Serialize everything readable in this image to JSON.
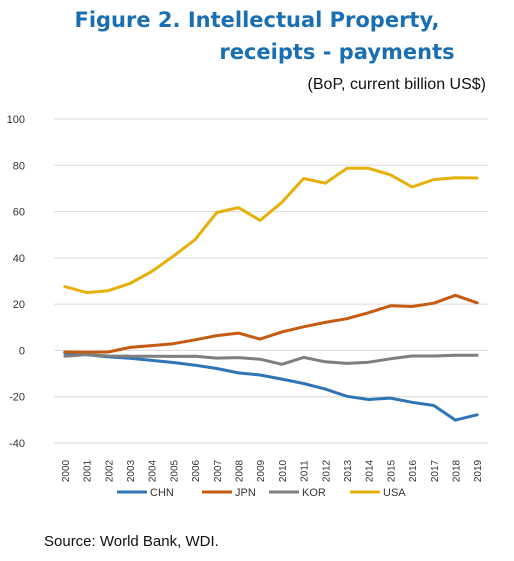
{
  "figure": {
    "title_line1": "Figure 2. Intellectual Property,",
    "title_line2": "receipts - payments",
    "units": "(BoP, current billion US$)",
    "source": "Source: World Bank, WDI."
  },
  "colors": {
    "CHN": "#2e75b6",
    "JPN": "#c55a11",
    "KOR": "#7f7f7f",
    "USA": "#e6b00a",
    "gridline": "#d9d9d9",
    "title": "#1a6fb3"
  },
  "chart_data": {
    "type": "line",
    "title": "Figure 2. Intellectual Property, receipts - payments",
    "ylabel": "",
    "xlabel": "",
    "ylim": [
      -40,
      100
    ],
    "yticks": [
      100,
      80,
      60,
      40,
      20,
      0,
      -20,
      -40
    ],
    "ytick_labels": [
      "100",
      "80",
      "60",
      "40",
      "20",
      "0",
      "-20",
      "-40"
    ],
    "grid": true,
    "legend": "bottom",
    "x": [
      "2000",
      "2001",
      "2002",
      "2003",
      "2004",
      "2005",
      "2006",
      "2007",
      "2008",
      "2009",
      "2010",
      "2011",
      "2012",
      "2013",
      "2014",
      "2015",
      "2016",
      "2017",
      "2018",
      "2019"
    ],
    "series": [
      {
        "name": "CHN",
        "values": [
          -1.2,
          -1.8,
          -2.8,
          -3.4,
          -4.3,
          -5.2,
          -6.4,
          -7.8,
          -9.7,
          -10.6,
          -12.4,
          -14.3,
          -16.7,
          -19.8,
          -21.2,
          -20.6,
          -22.4,
          -23.8,
          -30.1,
          -27.8
        ]
      },
      {
        "name": "JPN",
        "values": [
          -0.7,
          -0.8,
          -0.7,
          1.3,
          2.1,
          2.9,
          4.6,
          6.4,
          7.5,
          4.9,
          8.0,
          10.2,
          12.1,
          13.7,
          16.3,
          19.3,
          19.0,
          20.4,
          23.8,
          20.6
        ]
      },
      {
        "name": "KOR",
        "values": [
          -2.5,
          -1.8,
          -2.4,
          -2.5,
          -2.5,
          -2.6,
          -2.5,
          -3.3,
          -3.1,
          -3.8,
          -6.0,
          -3.0,
          -4.9,
          -5.6,
          -5.1,
          -3.6,
          -2.4,
          -2.4,
          -2.1,
          -2.1
        ]
      },
      {
        "name": "USA",
        "values": [
          27.6,
          25.0,
          25.8,
          28.9,
          34.1,
          40.7,
          47.9,
          59.6,
          61.7,
          56.2,
          64.0,
          74.3,
          72.3,
          78.7,
          78.7,
          75.9,
          70.6,
          73.8,
          74.6,
          74.5
        ]
      }
    ]
  }
}
